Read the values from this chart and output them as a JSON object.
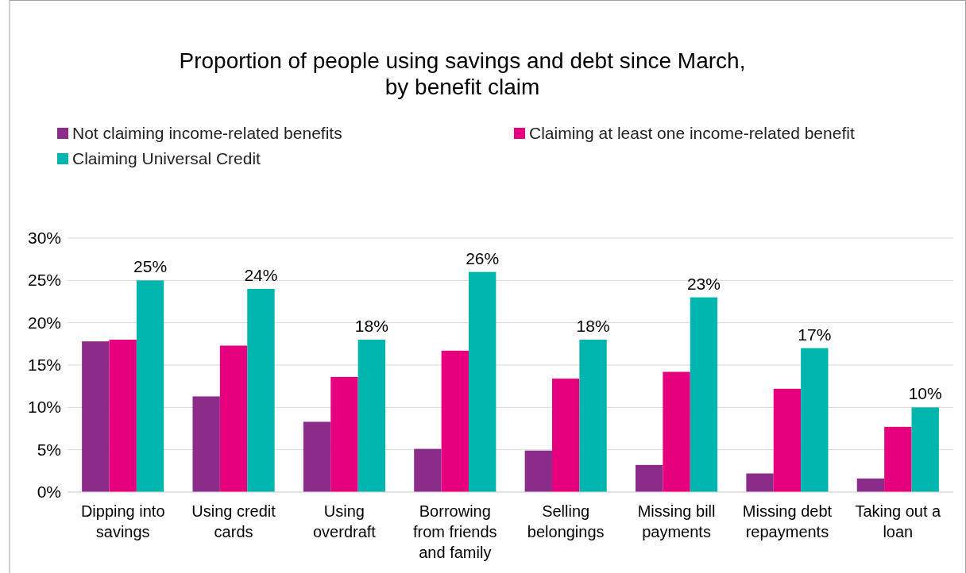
{
  "chart_data": {
    "type": "bar",
    "title": "Proportion of people using savings and debt since March,\nby benefit claim",
    "categories": [
      "Dipping into savings",
      "Using credit cards",
      "Using overdraft",
      "Borrowing from friends and family",
      "Selling belongings",
      "Missing bill payments",
      "Missing debt repayments",
      "Taking out a loan"
    ],
    "series": [
      {
        "name": "Not claiming income-related benefits",
        "color": "#8b2c8b",
        "values": [
          17.8,
          11.3,
          8.3,
          5.1,
          4.9,
          3.2,
          2.2,
          1.6
        ]
      },
      {
        "name": "Claiming at least one income-related benefit",
        "color": "#e6007e",
        "values": [
          18.0,
          17.3,
          13.6,
          16.7,
          13.4,
          14.2,
          12.2,
          7.7
        ]
      },
      {
        "name": "Claiming Universal Credit",
        "color": "#00b5ad",
        "values": [
          25,
          24,
          18,
          26,
          18,
          23,
          17,
          10
        ],
        "value_labels": [
          "25%",
          "24%",
          "18%",
          "26%",
          "18%",
          "23%",
          "17%",
          "10%"
        ]
      }
    ],
    "ylim": [
      0,
      30
    ],
    "yticks": [
      {
        "value": 0,
        "label": "0%"
      },
      {
        "value": 5,
        "label": "5%"
      },
      {
        "value": 10,
        "label": "10%"
      },
      {
        "value": 15,
        "label": "15%"
      },
      {
        "value": 20,
        "label": "20%"
      },
      {
        "value": 25,
        "label": "25%"
      },
      {
        "value": 30,
        "label": "30%"
      }
    ],
    "grid": "y",
    "legend": "top"
  }
}
